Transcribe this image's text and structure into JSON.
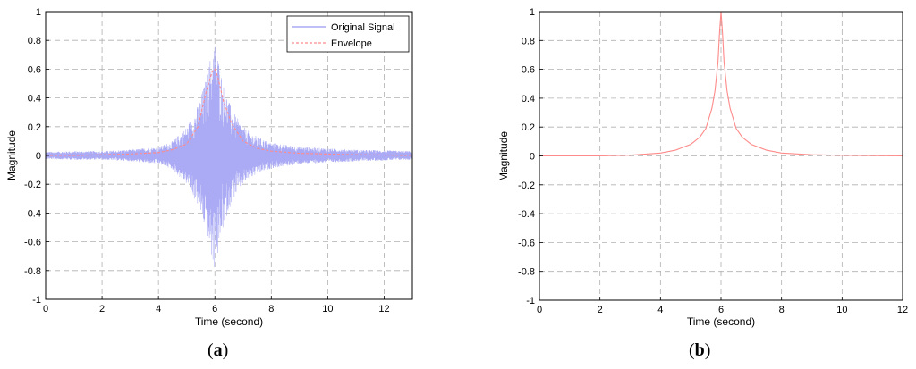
{
  "chart_data": [
    {
      "type": "line",
      "panel_label": "a",
      "xlabel": "Time (second)",
      "ylabel": "Magnitude",
      "xlim": [
        0,
        13
      ],
      "ylim": [
        -1,
        1
      ],
      "xticks": [
        "0",
        "2",
        "4",
        "6",
        "8",
        "10",
        "12"
      ],
      "yticks": [
        "-1",
        "-0.8",
        "-0.6",
        "-0.4",
        "-0.2",
        "0",
        "0.2",
        "0.4",
        "0.6",
        "0.8",
        "1"
      ],
      "grid": true,
      "legend_position": "top-right",
      "series": [
        {
          "name": "Original Signal",
          "color": "#aaaaf5",
          "style": "oscillating",
          "amplitude_envelope": {
            "x": [
              0,
              1,
              2,
              3,
              4,
              4.5,
              5,
              5.4,
              5.7,
              5.9,
              6.0,
              6.1,
              6.3,
              6.6,
              7,
              7.5,
              8,
              9,
              10,
              11,
              12,
              13
            ],
            "y": [
              0.025,
              0.03,
              0.03,
              0.04,
              0.06,
              0.1,
              0.2,
              0.35,
              0.55,
              0.75,
              0.8,
              0.72,
              0.5,
              0.32,
              0.2,
              0.13,
              0.09,
              0.06,
              0.05,
              0.04,
              0.035,
              0.03
            ]
          }
        },
        {
          "name": "Envelope",
          "color": "#ff8a8a",
          "x": [
            0,
            1,
            2,
            3,
            4,
            4.5,
            5,
            5.4,
            5.7,
            5.9,
            6.0,
            6.1,
            6.3,
            6.6,
            7,
            7.5,
            8,
            9,
            10,
            11,
            12,
            13
          ],
          "y": [
            0.0,
            0.0,
            0.005,
            0.01,
            0.02,
            0.04,
            0.08,
            0.2,
            0.45,
            0.58,
            0.6,
            0.55,
            0.38,
            0.22,
            0.1,
            0.05,
            0.03,
            0.015,
            0.01,
            0.005,
            0.003,
            0.0
          ]
        }
      ]
    },
    {
      "type": "line",
      "panel_label": "b",
      "xlabel": "Time (second)",
      "ylabel": "Magnitude",
      "xlim": [
        0,
        12
      ],
      "ylim": [
        -1,
        1
      ],
      "xticks": [
        "0",
        "2",
        "4",
        "6",
        "8",
        "10",
        "12"
      ],
      "yticks": [
        "-1",
        "-0.8",
        "-0.6",
        "-0.4",
        "-0.2",
        "0",
        "0.2",
        "0.4",
        "0.6",
        "0.8",
        "1"
      ],
      "grid": true,
      "series": [
        {
          "color": "#ff8a8a",
          "x": [
            0,
            2,
            3,
            4,
            4.5,
            5,
            5.3,
            5.5,
            5.7,
            5.8,
            5.9,
            5.95,
            6.0,
            6.05,
            6.1,
            6.2,
            6.3,
            6.5,
            6.7,
            7,
            7.5,
            8,
            9,
            10,
            12
          ],
          "y": [
            0.0,
            0.0,
            0.005,
            0.02,
            0.04,
            0.08,
            0.13,
            0.19,
            0.33,
            0.45,
            0.65,
            0.85,
            1.0,
            0.85,
            0.65,
            0.45,
            0.33,
            0.19,
            0.13,
            0.08,
            0.04,
            0.02,
            0.008,
            0.004,
            0.0
          ]
        }
      ]
    }
  ]
}
